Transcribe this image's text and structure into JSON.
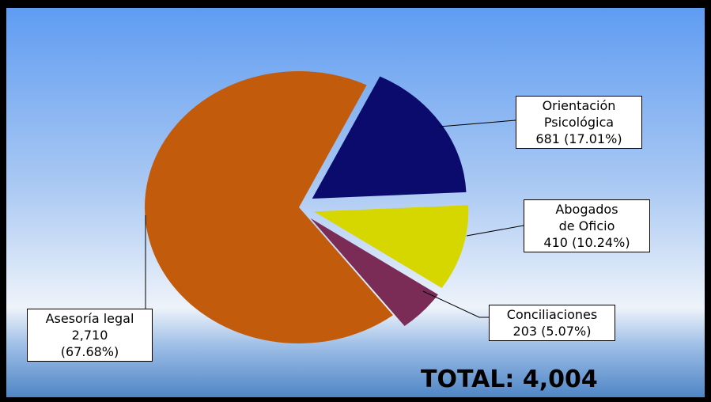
{
  "chart_data": {
    "type": "pie",
    "categories": [
      "Asesoría legal",
      "Orientación Psicológica",
      "Abogados de Oficio",
      "Conciliaciones"
    ],
    "values": [
      2710,
      681,
      410,
      203
    ],
    "value_labels": [
      "2,710",
      "681",
      "410",
      "203"
    ],
    "percentages": [
      67.68,
      17.01,
      10.24,
      5.07
    ],
    "percentage_labels": [
      "(67.68%)",
      "(17.01%)",
      "(10.24%)",
      "(5.07%)"
    ],
    "colors": [
      "#c25b0b",
      "#0b0b6d",
      "#d6d600",
      "#7a2b56"
    ],
    "annotation": "TOTAL: 4,004"
  }
}
